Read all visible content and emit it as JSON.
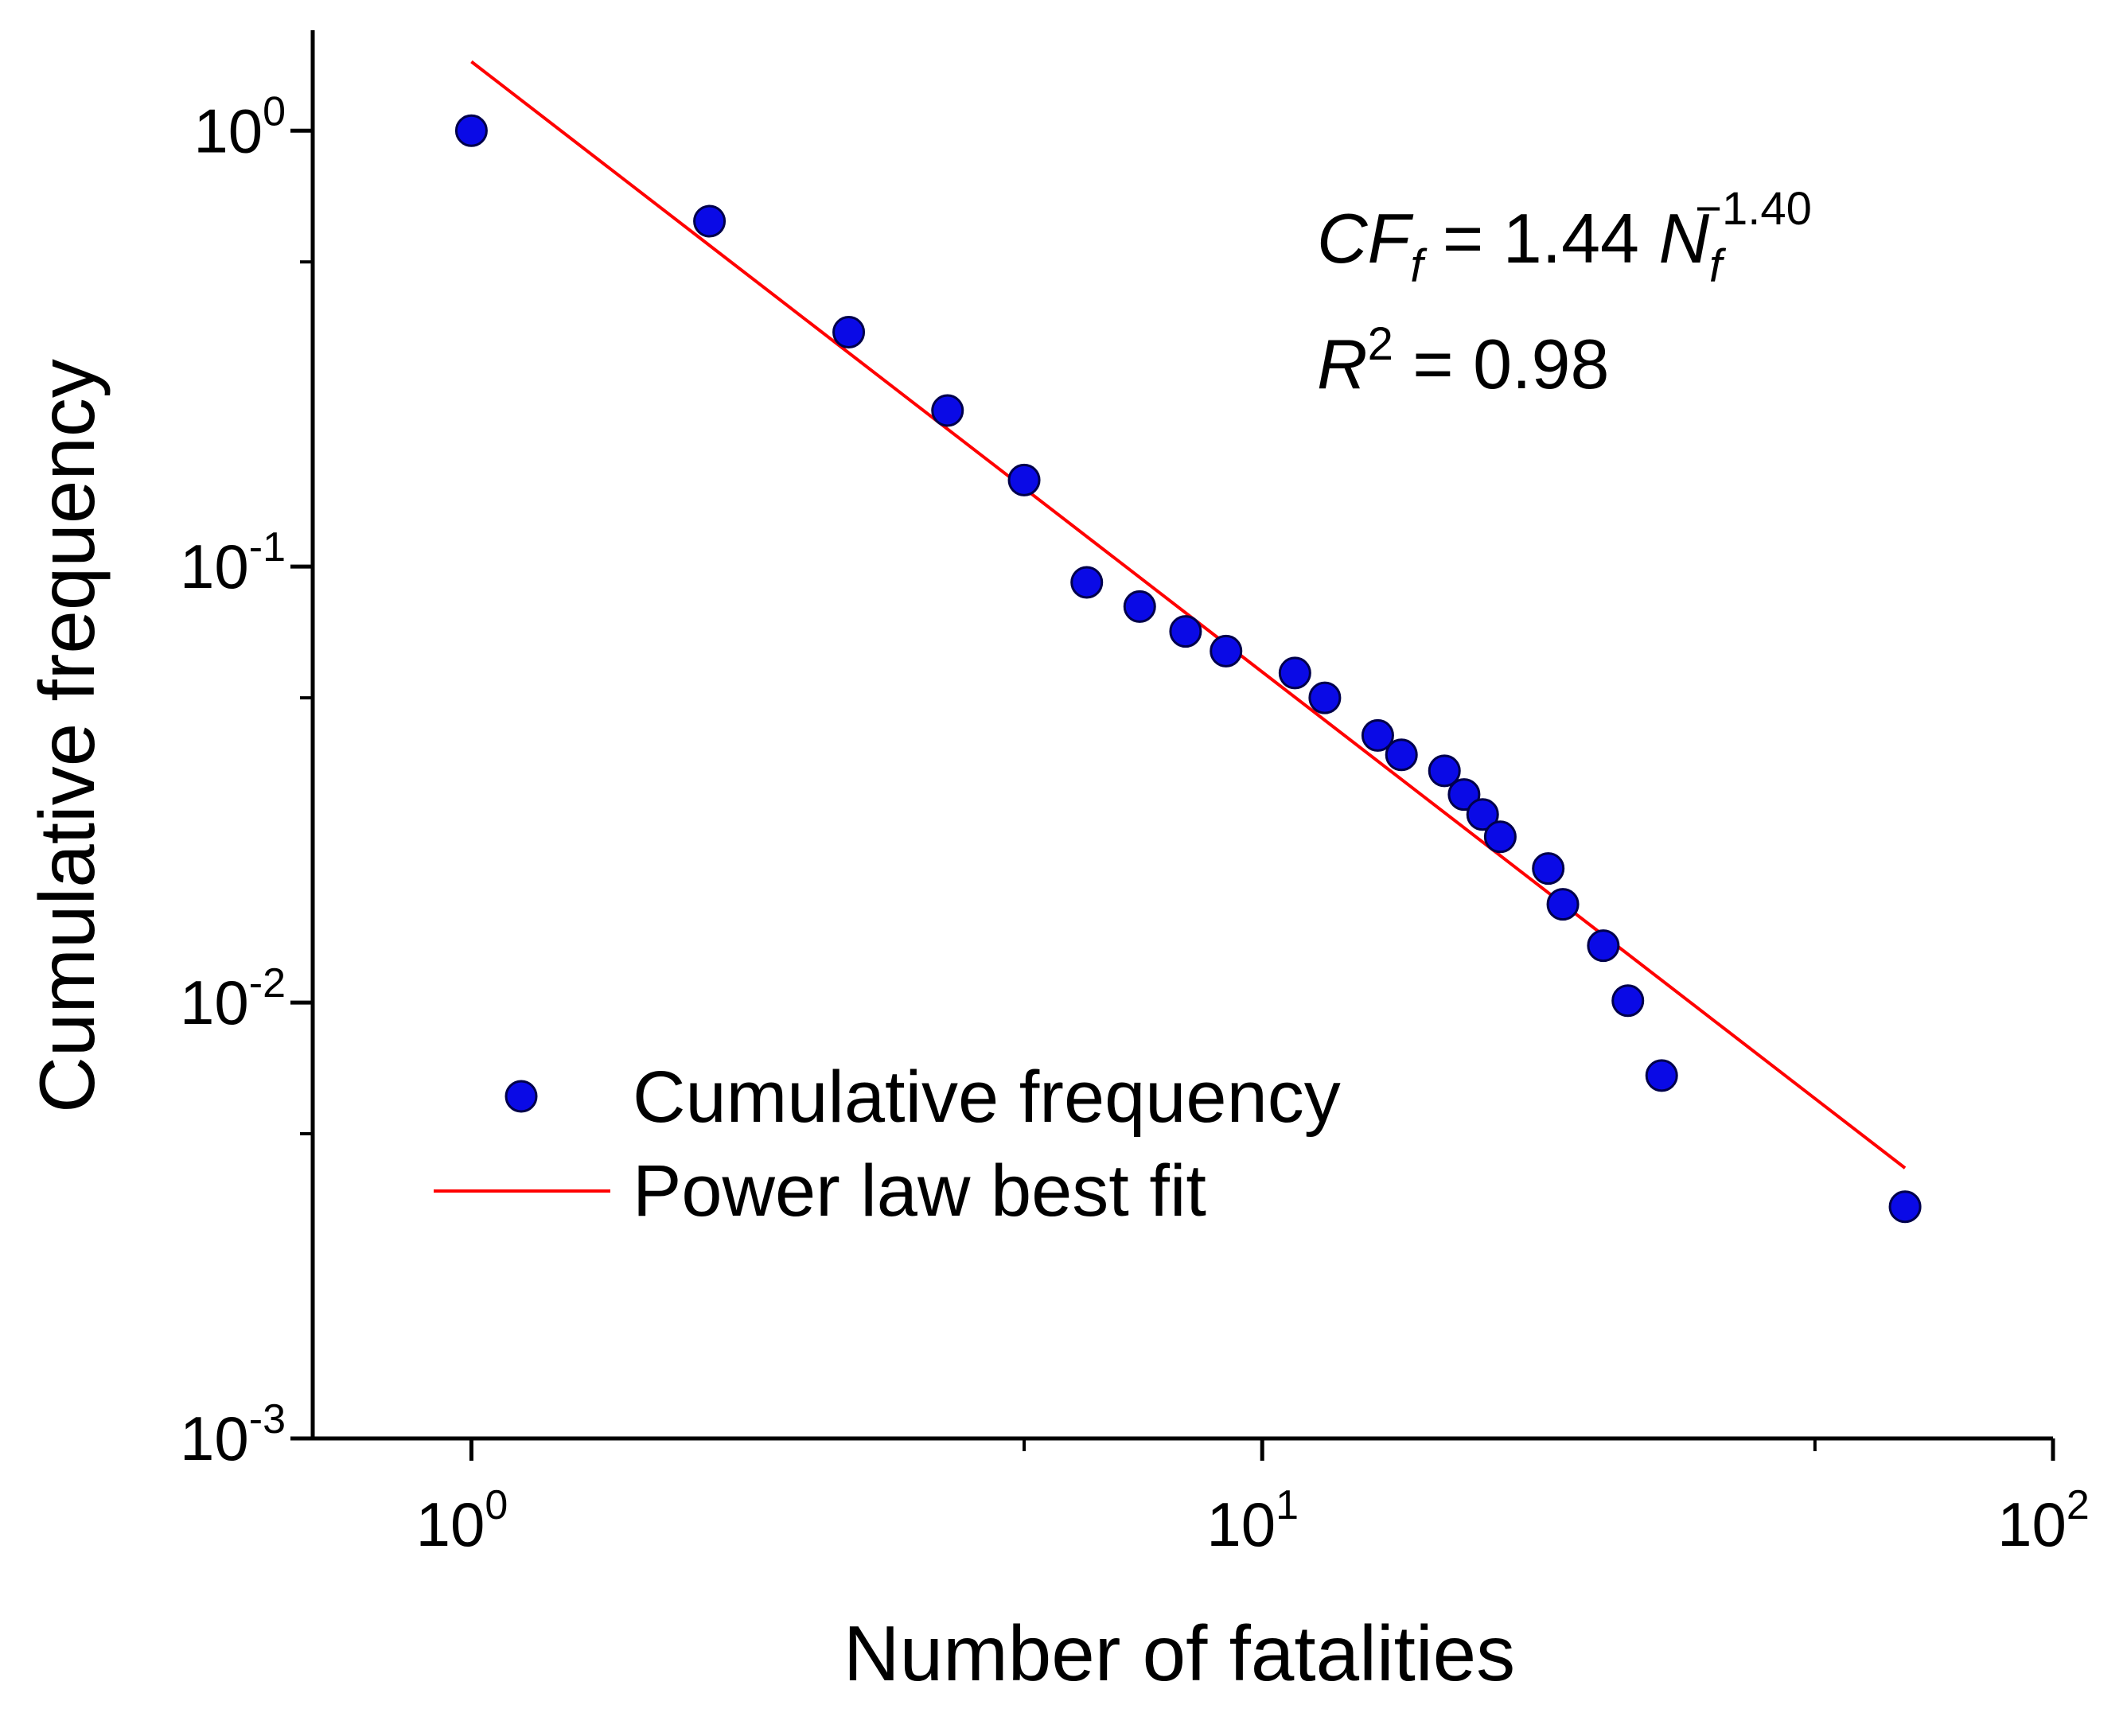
{
  "chart_data": {
    "type": "scatter",
    "title": "",
    "xlabel": "Number of fatalities",
    "ylabel": "Cumulative frequency",
    "xscale": "log",
    "yscale": "log",
    "xlim": [
      0.63,
      100
    ],
    "ylim": [
      0.001,
      1.7
    ],
    "x_ticks": [
      {
        "base": "10",
        "exp": "0",
        "value": 1
      },
      {
        "base": "10",
        "exp": "1",
        "value": 10
      },
      {
        "base": "10",
        "exp": "2",
        "value": 100
      }
    ],
    "y_ticks": [
      {
        "base": "10",
        "exp": "0",
        "value": 1
      },
      {
        "base": "10",
        "exp": "-1",
        "value": 0.1
      },
      {
        "base": "10",
        "exp": "-2",
        "value": 0.01
      },
      {
        "base": "10",
        "exp": "-3",
        "value": 0.001
      }
    ],
    "series": [
      {
        "name": "Cumulative frequency",
        "kind": "scatter",
        "color": "#0a0ae6",
        "edge_color": "#00004a",
        "points": [
          {
            "x": 1,
            "y": 1.0
          },
          {
            "x": 2,
            "y": 0.62
          },
          {
            "x": 3,
            "y": 0.345
          },
          {
            "x": 4,
            "y": 0.228
          },
          {
            "x": 5,
            "y": 0.158
          },
          {
            "x": 6,
            "y": 0.092
          },
          {
            "x": 7,
            "y": 0.081
          },
          {
            "x": 8,
            "y": 0.071
          },
          {
            "x": 9,
            "y": 0.064
          },
          {
            "x": 11,
            "y": 0.057
          },
          {
            "x": 12,
            "y": 0.05
          },
          {
            "x": 14,
            "y": 0.041
          },
          {
            "x": 15,
            "y": 0.037
          },
          {
            "x": 17,
            "y": 0.034
          },
          {
            "x": 18,
            "y": 0.03
          },
          {
            "x": 19,
            "y": 0.027
          },
          {
            "x": 20,
            "y": 0.024
          },
          {
            "x": 23,
            "y": 0.0203
          },
          {
            "x": 24,
            "y": 0.0168
          },
          {
            "x": 27,
            "y": 0.0135
          },
          {
            "x": 29,
            "y": 0.0101
          },
          {
            "x": 32,
            "y": 0.0068
          },
          {
            "x": 65,
            "y": 0.0034
          }
        ]
      },
      {
        "name": "Power law best fit",
        "kind": "line",
        "color": "#ff0000",
        "coefficient": 1.44,
        "exponent": -1.4,
        "x_range": [
          1,
          65
        ]
      }
    ],
    "legend": {
      "position": "lower-left",
      "entries": [
        "Cumulative frequency",
        "Power law best fit"
      ]
    },
    "annotation": {
      "lhs_main": "CF",
      "lhs_sub": "f",
      "equals_coef": " = 1.44 ",
      "rhs_main": "N",
      "rhs_sub": "f",
      "rhs_exp": "−1.40",
      "r2_main": "R",
      "r2_exp": "2",
      "r2_value": " = 0.98"
    }
  }
}
